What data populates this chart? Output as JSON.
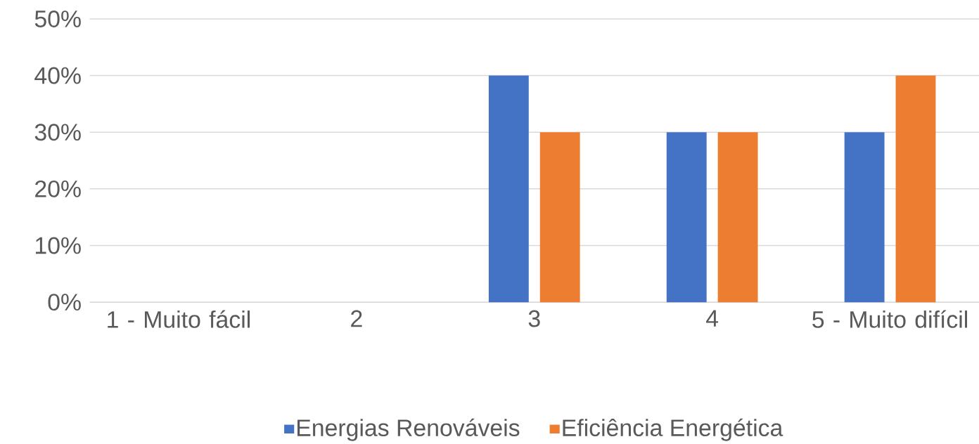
{
  "chart_data": {
    "type": "bar",
    "categories": [
      "1 - Muito fácil",
      "2",
      "3",
      "4",
      "5 - Muito difícil"
    ],
    "series": [
      {
        "name": "Energias Renováveis",
        "color": "#4472c4",
        "values": [
          0,
          0,
          40,
          30,
          30
        ]
      },
      {
        "name": "Eficiência Energética",
        "color": "#ed7d31",
        "values": [
          0,
          0,
          30,
          30,
          40
        ]
      }
    ],
    "ylim": [
      0,
      50
    ],
    "yticks": [
      {
        "value": 0,
        "label": "0%"
      },
      {
        "value": 10,
        "label": "10%"
      },
      {
        "value": 20,
        "label": "20%"
      },
      {
        "value": 30,
        "label": "30%"
      },
      {
        "value": 40,
        "label": "40%"
      },
      {
        "value": 50,
        "label": "50%"
      }
    ],
    "grid": "y",
    "legend": "bottom"
  }
}
